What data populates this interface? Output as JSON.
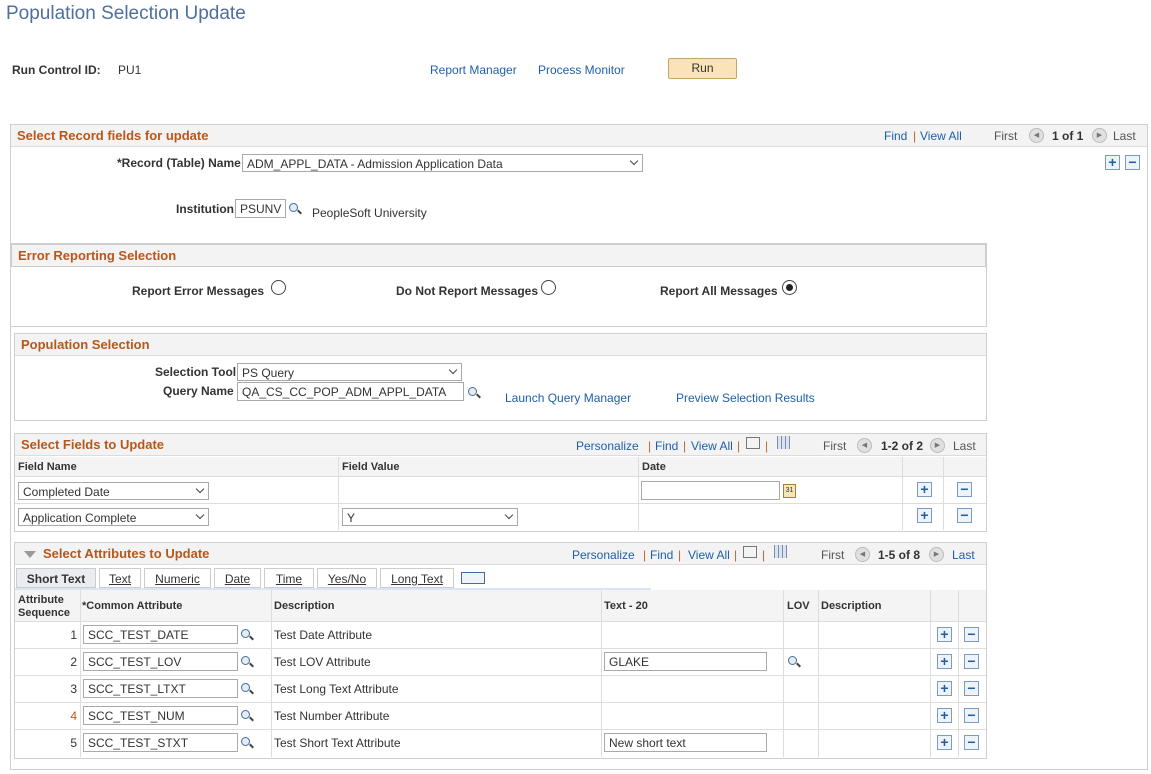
{
  "page_title": "Population Selection Update",
  "run_control": {
    "label": "Run Control ID:",
    "value": "PU1",
    "report_manager": "Report Manager",
    "process_monitor": "Process Monitor",
    "run": "Run"
  },
  "record": {
    "header": "Select Record fields for update",
    "find": "Find",
    "view_all": "View All",
    "first": "First",
    "count": "1 of 1",
    "last": "Last",
    "record_label": "*Record (Table) Name",
    "record_value": "ADM_APPL_DATA - Admission Application Data",
    "institution_label": "Institution",
    "institution_value": "PSUNV",
    "institution_desc": "PeopleSoft University"
  },
  "error": {
    "header": "Error Reporting Selection",
    "options": [
      {
        "label": "Report Error Messages",
        "selected": false
      },
      {
        "label": "Do Not Report Messages",
        "selected": false
      },
      {
        "label": "Report All Messages",
        "selected": true
      }
    ]
  },
  "population": {
    "header": "Population Selection",
    "tool_label": "Selection Tool",
    "tool_value": "PS Query",
    "query_label": "Query Name",
    "query_value": "QA_CS_CC_POP_ADM_APPL_DATA",
    "launch": "Launch Query Manager",
    "preview": "Preview Selection Results"
  },
  "fields": {
    "header": "Select Fields to Update",
    "personalize": "Personalize",
    "find": "Find",
    "view_all": "View All",
    "first": "First",
    "count": "1-2 of 2",
    "last": "Last",
    "columns": [
      "Field Name",
      "Field Value",
      "Date"
    ],
    "rows": [
      {
        "field": "Completed Date",
        "value": "",
        "date": ""
      },
      {
        "field": "Application Complete",
        "value": "Y"
      }
    ]
  },
  "attributes": {
    "header": "Select Attributes to Update",
    "personalize": "Personalize",
    "find": "Find",
    "view_all": "View All",
    "first": "First",
    "count": "1-5 of 8",
    "last": "Last",
    "tabs": [
      "Short Text",
      "Text",
      "Numeric",
      "Date",
      "Time",
      "Yes/No",
      "Long Text"
    ],
    "columns": [
      "Attribute Sequence",
      "*Common Attribute",
      "Description",
      "Text - 20",
      "LOV",
      "Description"
    ],
    "rows": [
      {
        "seq": "1",
        "attr": "SCC_TEST_DATE",
        "desc": "Test Date Attribute",
        "text": ""
      },
      {
        "seq": "2",
        "attr": "SCC_TEST_LOV",
        "desc": "Test LOV Attribute",
        "text": "GLAKE"
      },
      {
        "seq": "3",
        "attr": "SCC_TEST_LTXT",
        "desc": "Test Long Text Attribute",
        "text": ""
      },
      {
        "seq": "4",
        "attr": "SCC_TEST_NUM",
        "desc": "Test Number Attribute",
        "text": ""
      },
      {
        "seq": "5",
        "attr": "SCC_TEST_STXT",
        "desc": "Test Short Text Attribute",
        "text": "New short text"
      }
    ]
  },
  "colors": {
    "section_title": "#b8571b",
    "link": "#1f5fa8",
    "run_button": "#fbe3b8"
  }
}
